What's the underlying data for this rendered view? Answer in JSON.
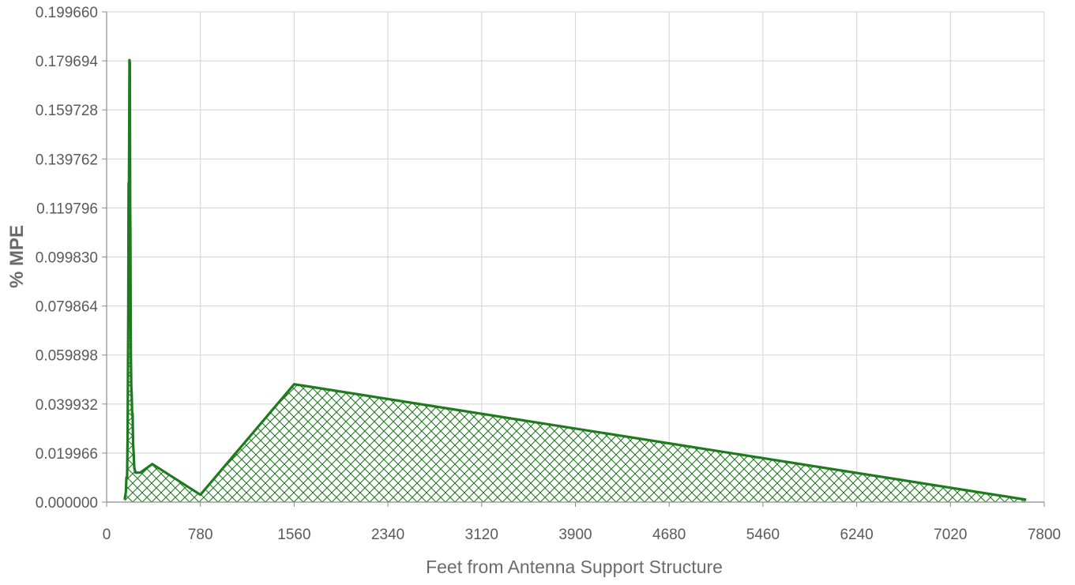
{
  "chart_data": {
    "type": "area",
    "title": "",
    "xlabel": "Feet from Antenna Support Structure",
    "ylabel": "% MPE",
    "xlim": [
      0,
      7800
    ],
    "ylim": [
      0,
      0.19966
    ],
    "x_ticks": [
      "0",
      "780",
      "1560",
      "2340",
      "3120",
      "3900",
      "4680",
      "5460",
      "6240",
      "7020",
      "7800"
    ],
    "y_ticks": [
      "0.000000",
      "0.019966",
      "0.039932",
      "0.059898",
      "0.079864",
      "0.099830",
      "0.119796",
      "0.139762",
      "0.159728",
      "0.179694",
      "0.199660"
    ],
    "grid": true,
    "legend": "none",
    "fill_pattern": "crosshatch",
    "series": [
      {
        "color": "#1e7a1e",
        "x": [
          150,
          160,
          165,
          170,
          175,
          180,
          183,
          186,
          190,
          193,
          196,
          198,
          200,
          202,
          205,
          208,
          212,
          216,
          220,
          225,
          230,
          235,
          240,
          250,
          260,
          280,
          380,
          780,
          1560,
          7650
        ],
        "y": [
          0.001,
          0.004,
          0.01,
          0.01,
          0.028,
          0.08,
          0.13,
          0.13,
          0.18,
          0.179,
          0.12,
          0.11,
          0.08,
          0.06,
          0.047,
          0.044,
          0.036,
          0.036,
          0.024,
          0.02,
          0.014,
          0.013,
          0.012,
          0.012,
          0.012,
          0.012,
          0.0155,
          0.003,
          0.048,
          0.001
        ]
      }
    ]
  }
}
